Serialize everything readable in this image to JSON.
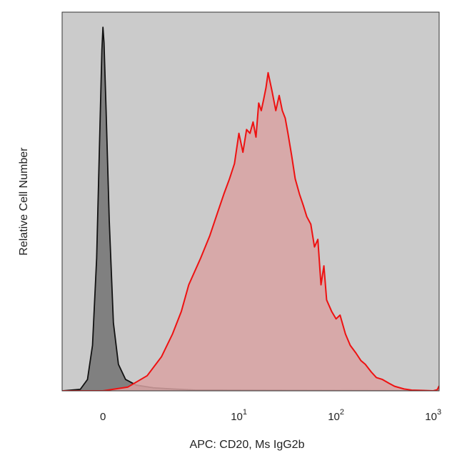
{
  "chart_data": {
    "type": "area",
    "title": "",
    "xlabel": "APC: CD20, Ms IgG2b",
    "ylabel": "Relative Cell Number",
    "x_scale": "biexponential",
    "xlim": [
      -0.9,
      1150
    ],
    "ylim": [
      0,
      1
    ],
    "grid": false,
    "legend": "none",
    "x_ticks": [
      {
        "value": 0,
        "base": "0",
        "exp": ""
      },
      {
        "value": 10,
        "base": "10",
        "exp": "1"
      },
      {
        "value": 100,
        "base": "10",
        "exp": "2"
      },
      {
        "value": 1000,
        "base": "10",
        "exp": "3"
      }
    ],
    "colors": {
      "plot_background": "#cbcbcb",
      "isotype_fill": "#808080",
      "isotype_line": "#111111",
      "stained_fill": "#d9a3a3",
      "stained_line": "#ee1111"
    },
    "series": [
      {
        "role": "isotype",
        "x": [
          -0.9,
          -0.45,
          -0.3,
          -0.2,
          -0.12,
          -0.06,
          -0.02,
          0.0,
          0.02,
          0.06,
          0.12,
          0.2,
          0.3,
          0.45,
          0.7,
          1.2,
          2.0,
          3.5,
          1150
        ],
        "y": [
          0.0,
          0.004,
          0.03,
          0.12,
          0.35,
          0.68,
          0.9,
          0.96,
          0.92,
          0.74,
          0.45,
          0.18,
          0.07,
          0.03,
          0.015,
          0.008,
          0.005,
          0.002,
          0.0
        ]
      },
      {
        "role": "stained",
        "x": [
          -0.9,
          0.0,
          0.5,
          1.0,
          1.5,
          2.0,
          2.5,
          3.0,
          4.0,
          5.0,
          6.0,
          7.0,
          8.0,
          9.0,
          10.0,
          11.0,
          12.0,
          13.0,
          14.0,
          15.0,
          16.0,
          17.0,
          18.0,
          19.0,
          20.0,
          22.0,
          24.0,
          26.0,
          28.0,
          30.0,
          32.0,
          35.0,
          38.0,
          42.0,
          46.0,
          50.0,
          55.0,
          60.0,
          65.0,
          70.0,
          75.0,
          80.0,
          90.0,
          100.0,
          110.0,
          125.0,
          140.0,
          160.0,
          180.0,
          200.0,
          230.0,
          260.0,
          300.0,
          350.0,
          400.0,
          500.0,
          600.0,
          800.0,
          1000.0,
          1100.0,
          1150.0
        ],
        "y": [
          0.0,
          0.0,
          0.01,
          0.04,
          0.09,
          0.15,
          0.21,
          0.28,
          0.35,
          0.41,
          0.47,
          0.52,
          0.56,
          0.6,
          0.68,
          0.63,
          0.69,
          0.68,
          0.71,
          0.67,
          0.76,
          0.74,
          0.77,
          0.8,
          0.84,
          0.79,
          0.74,
          0.78,
          0.74,
          0.72,
          0.68,
          0.62,
          0.56,
          0.52,
          0.49,
          0.46,
          0.44,
          0.38,
          0.4,
          0.28,
          0.33,
          0.24,
          0.21,
          0.19,
          0.2,
          0.15,
          0.12,
          0.1,
          0.08,
          0.07,
          0.05,
          0.035,
          0.03,
          0.02,
          0.012,
          0.005,
          0.002,
          0.001,
          0.0,
          0.003,
          0.013
        ]
      }
    ]
  }
}
